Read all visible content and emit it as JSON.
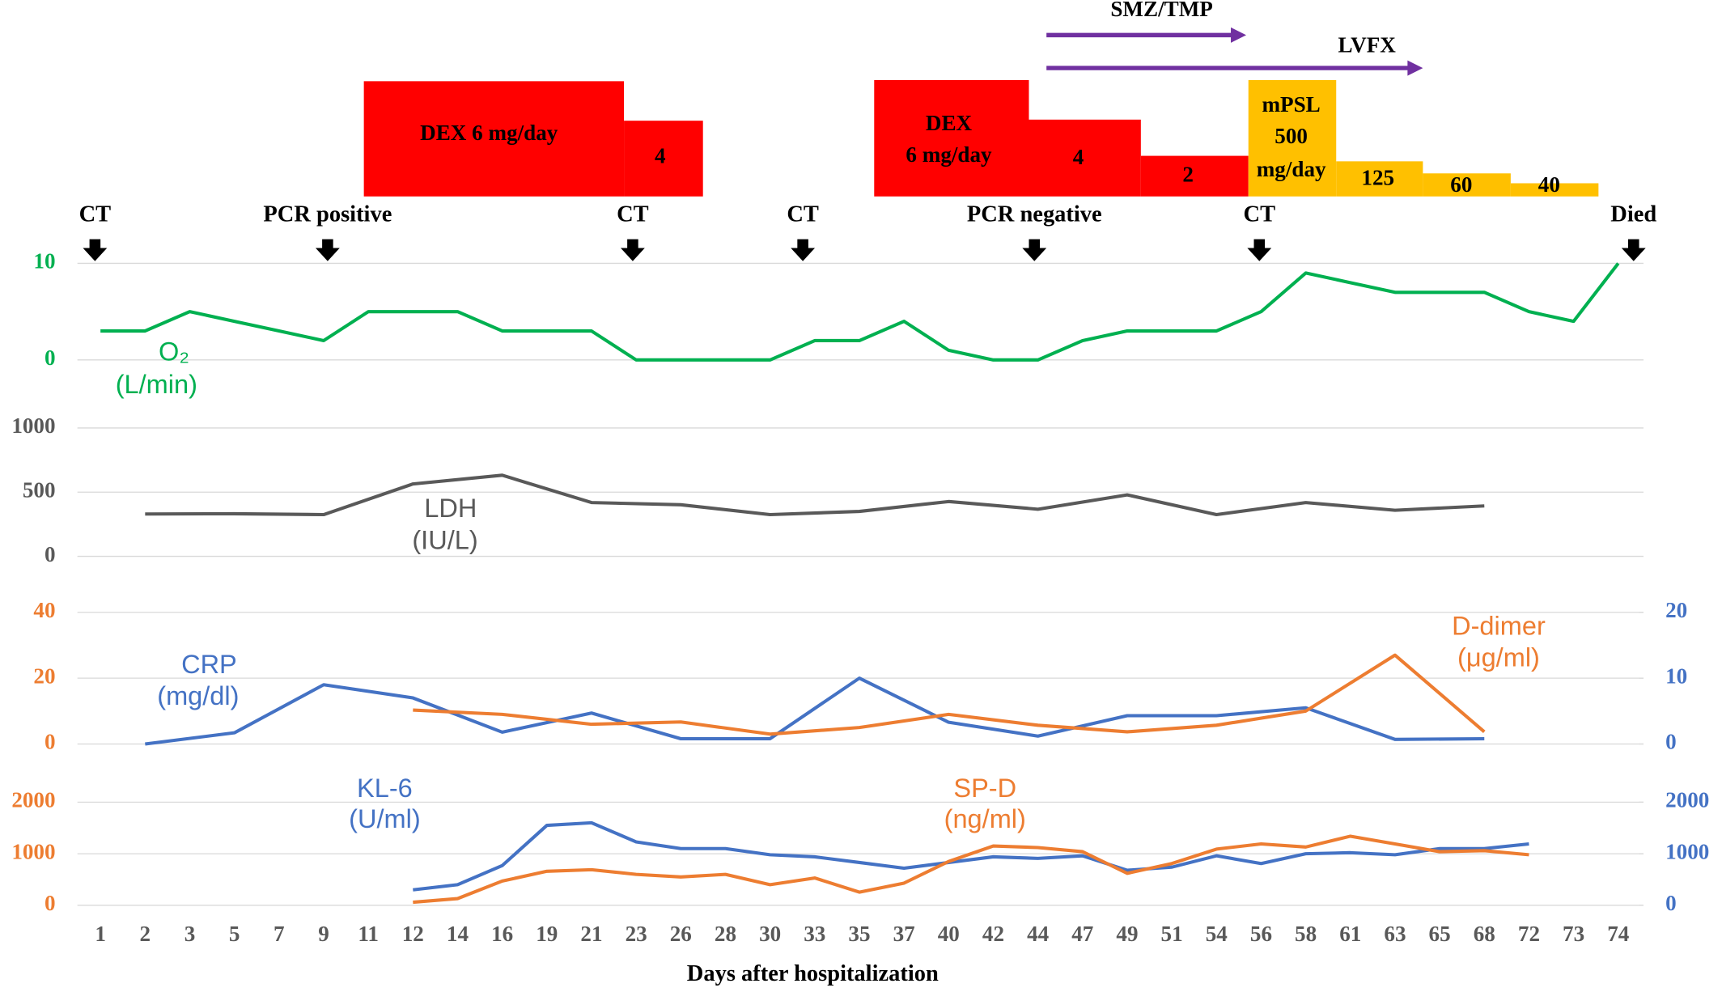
{
  "chart_data": [
    {
      "type": "line",
      "ylim": [
        0,
        10
      ],
      "yticks": [
        0,
        10
      ],
      "grid": true,
      "series": [
        {
          "name": "O₂",
          "unit": "(L/min)",
          "color": "#00b050",
          "x": [
            1,
            2,
            3,
            5,
            7,
            9,
            11,
            12,
            14,
            16,
            19,
            21,
            23,
            26,
            28,
            30,
            33,
            35,
            37,
            40,
            42,
            44,
            47,
            49,
            51,
            54,
            56,
            58,
            61,
            63,
            65,
            68,
            72,
            73,
            74
          ],
          "values": [
            3,
            3,
            5,
            4,
            3,
            2,
            5,
            5,
            5,
            3,
            3,
            3,
            0,
            0,
            0,
            0,
            2,
            2,
            4,
            1,
            0,
            0,
            2,
            3,
            3,
            3,
            5,
            9,
            8,
            7,
            7,
            7,
            5,
            4,
            10
          ]
        }
      ]
    },
    {
      "type": "line",
      "ylim": [
        0,
        1000
      ],
      "yticks": [
        0,
        500,
        1000
      ],
      "grid": true,
      "series": [
        {
          "name": "LDH",
          "unit": "(IU/L)",
          "color": "#595959",
          "x": [
            2,
            5,
            9,
            12,
            16,
            21,
            26,
            30,
            35,
            40,
            44,
            49,
            54,
            58,
            63,
            68
          ],
          "values": [
            330,
            332,
            325,
            564,
            632,
            419,
            402,
            325,
            350,
            427,
            367,
            479,
            325,
            419,
            359,
            393
          ]
        }
      ]
    },
    {
      "type": "line",
      "ylim": [
        0,
        40
      ],
      "yticks": [
        0,
        20,
        40
      ],
      "y2lim": [
        0,
        20
      ],
      "y2ticks": [
        0,
        10,
        20
      ],
      "grid": true,
      "series": [
        {
          "name": "CRP",
          "unit": "(mg/dl)",
          "color": "#4472c4",
          "axis": "y2",
          "x": [
            2,
            5,
            9,
            12,
            16,
            21,
            26,
            30,
            35,
            40,
            44,
            49,
            54,
            58,
            63,
            68
          ],
          "values": [
            0,
            1.7,
            9,
            7,
            1.8,
            4.7,
            0.8,
            0.8,
            10,
            3.3,
            1.2,
            4.3,
            4.3,
            5.5,
            0.7,
            0.8
          ]
        },
        {
          "name": "D-dimer",
          "unit": "(μg/ml)",
          "color": "#ed7d31",
          "x": [
            12,
            16,
            21,
            26,
            30,
            35,
            40,
            44,
            49,
            54,
            58,
            63,
            68
          ],
          "values": [
            10.3,
            9,
            6,
            6.7,
            3,
            5,
            9,
            5.7,
            3.7,
            5.7,
            10,
            27,
            3.7
          ]
        }
      ]
    },
    {
      "type": "line",
      "ylim": [
        0,
        2000
      ],
      "yticks": [
        0,
        1000,
        2000
      ],
      "y2lim": [
        0,
        2000
      ],
      "y2ticks": [
        0,
        1000,
        2000
      ],
      "grid": true,
      "xlabel": "Days after hospitalization",
      "categories": [
        1,
        2,
        3,
        5,
        7,
        9,
        11,
        12,
        14,
        16,
        19,
        21,
        23,
        26,
        28,
        30,
        33,
        35,
        37,
        40,
        42,
        44,
        47,
        49,
        51,
        54,
        56,
        58,
        61,
        63,
        65,
        68,
        72,
        73,
        74
      ],
      "series": [
        {
          "name": "KL-6",
          "unit": "(U/ml)",
          "color": "#4472c4",
          "axis": "y2",
          "x": [
            12,
            14,
            16,
            19,
            21,
            23,
            26,
            28,
            30,
            33,
            35,
            37,
            40,
            42,
            44,
            47,
            49,
            51,
            54,
            56,
            58,
            61,
            63,
            65,
            68,
            72
          ],
          "values": [
            300,
            400,
            770,
            1550,
            1600,
            1230,
            1100,
            1100,
            980,
            940,
            830,
            720,
            830,
            940,
            910,
            960,
            680,
            740,
            960,
            810,
            1000,
            1020,
            980,
            1100,
            1100,
            1190
          ]
        },
        {
          "name": "SP-D",
          "unit": "(ng/ml)",
          "color": "#ed7d31",
          "x": [
            12,
            14,
            16,
            19,
            21,
            23,
            26,
            28,
            30,
            33,
            35,
            37,
            40,
            42,
            44,
            47,
            49,
            51,
            54,
            56,
            58,
            61,
            63,
            65,
            68,
            72
          ],
          "values": [
            60,
            130,
            470,
            660,
            690,
            600,
            550,
            600,
            400,
            530,
            255,
            430,
            850,
            1150,
            1120,
            1040,
            620,
            810,
            1090,
            1190,
            1130,
            1340,
            1190,
            1040,
            1060,
            980
          ]
        }
      ]
    }
  ],
  "events": [
    "CT",
    "PCR positive",
    "CT",
    "CT",
    "PCR negative",
    "CT",
    "Died"
  ],
  "treatments": [
    {
      "color": "#ff0000",
      "steps": [
        [
          "DEX 6 mg/day"
        ],
        [
          "4"
        ]
      ]
    },
    {
      "color": "#ff0000",
      "steps": [
        [
          "DEX",
          "6 mg/day"
        ],
        [
          "4"
        ],
        [
          "2"
        ]
      ]
    },
    {
      "color": "#ffc000",
      "steps": [
        [
          "mPSL",
          "500",
          "mg/day"
        ],
        [
          "125"
        ],
        [
          "60"
        ],
        [
          "40"
        ]
      ]
    }
  ],
  "antibiotics": {
    "color": "#7030a0",
    "names": [
      "SMZ/TMP",
      "LVFX"
    ]
  }
}
